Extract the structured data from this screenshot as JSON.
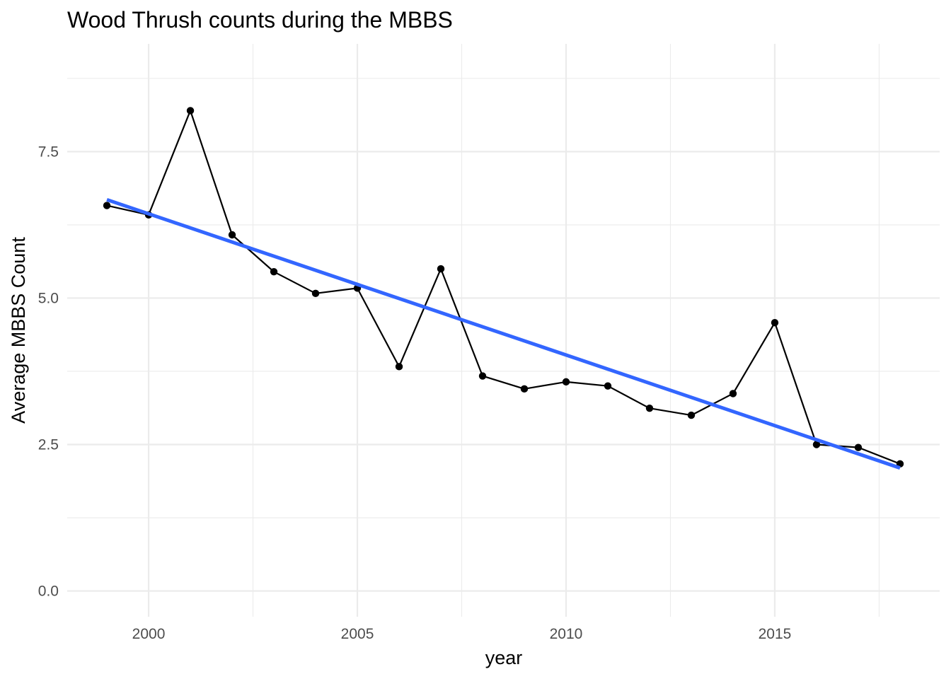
{
  "chart_data": {
    "type": "line",
    "title": "Wood Thrush counts during the MBBS",
    "xlabel": "year",
    "ylabel": "Average MBBS Count",
    "xlim": [
      1998.05,
      2018.95
    ],
    "ylim": [
      -0.44,
      9.34
    ],
    "x_ticks": [
      2000,
      2005,
      2010,
      2015
    ],
    "x_tick_labels": [
      "2000",
      "2005",
      "2010",
      "2015"
    ],
    "x_minor_ticks": [
      1997.5,
      2002.5,
      2007.5,
      2012.5,
      2017.5
    ],
    "y_ticks": [
      0,
      2.5,
      5,
      7.5
    ],
    "y_tick_labels": [
      "0.0",
      "2.5",
      "5.0",
      "7.5"
    ],
    "y_minor_ticks": [
      1.25,
      3.75,
      6.25,
      8.75
    ],
    "grid": true,
    "legend": "none",
    "series": [
      {
        "type": "line+points",
        "color": "#000000",
        "x": [
          1999,
          2000,
          2001,
          2002,
          2003,
          2004,
          2005,
          2006,
          2007,
          2008,
          2009,
          2010,
          2011,
          2012,
          2013,
          2014,
          2015,
          2016,
          2017,
          2018
        ],
        "values": [
          6.58,
          6.42,
          8.2,
          6.08,
          5.45,
          5.08,
          5.17,
          3.83,
          5.5,
          3.67,
          3.45,
          3.57,
          3.5,
          3.12,
          3.0,
          3.37,
          4.58,
          2.5,
          2.45,
          2.17
        ]
      },
      {
        "type": "trend",
        "color": "#3366ff",
        "x": [
          1999,
          2018
        ],
        "values": [
          6.68,
          2.1
        ]
      }
    ]
  }
}
